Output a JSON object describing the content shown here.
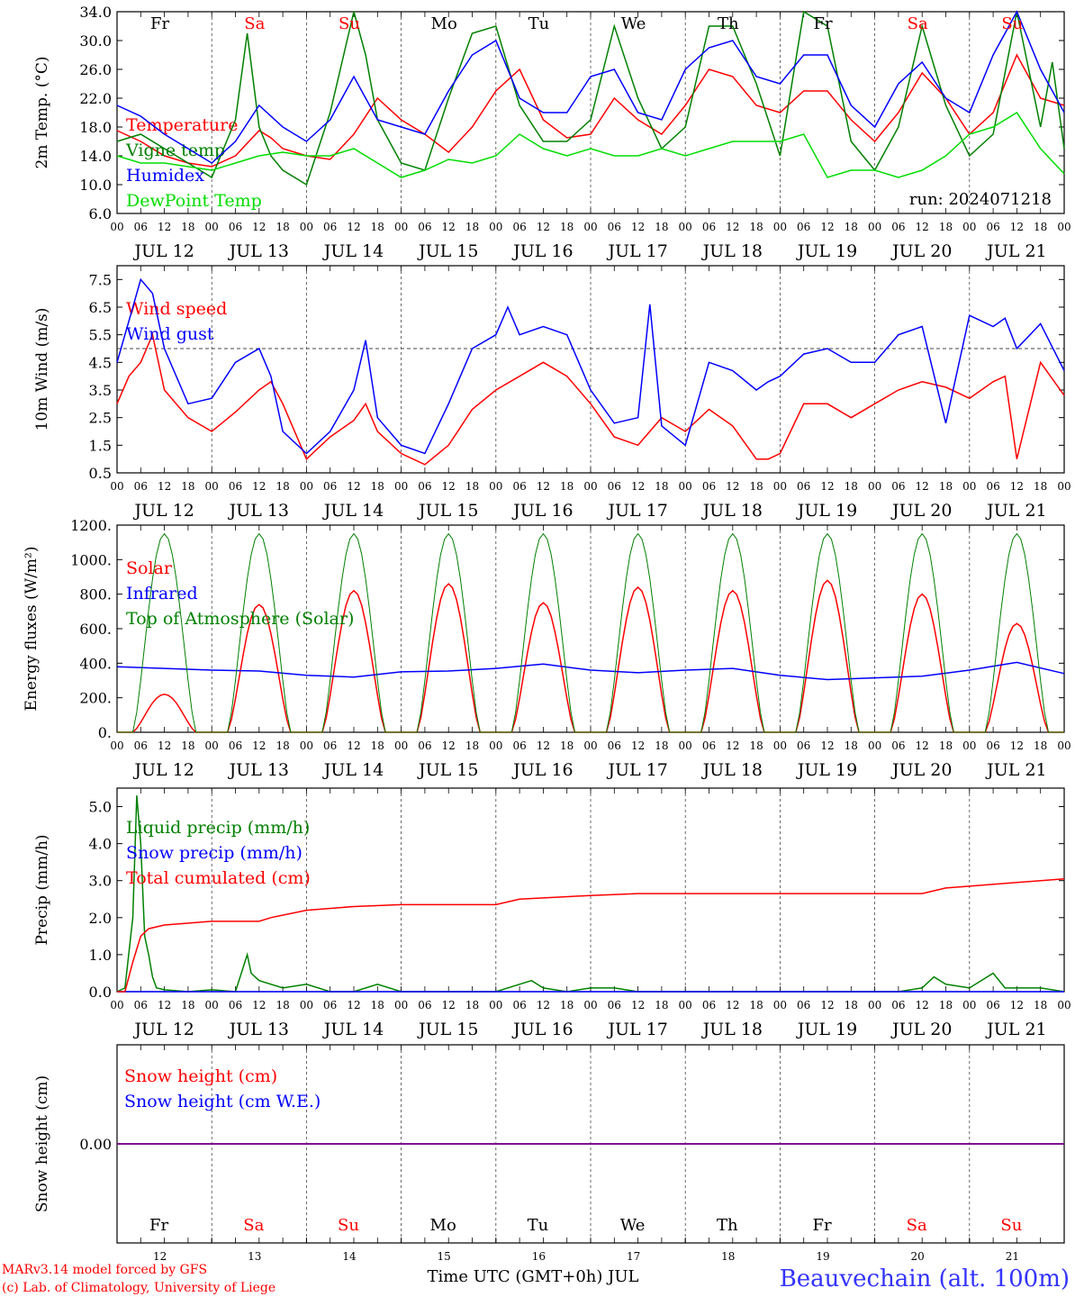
{
  "footer": {
    "credit_line1": "MARv3.14 model forced by GFS",
    "credit_line2": "(c) Lab. of Climatology, University of Liege",
    "axis_title": "Time UTC (GMT+0h) JUL",
    "station": "Beauvechain (alt. 100m)"
  },
  "time_axis": {
    "hour_ticks": [
      "00",
      "06",
      "12",
      "18"
    ],
    "dates": [
      "JUL 12",
      "JUL 13",
      "JUL 14",
      "JUL 15",
      "JUL 16",
      "JUL 17",
      "JUL 18",
      "JUL 19",
      "JUL 20",
      "JUL 21"
    ],
    "day_numbers": [
      "12",
      "13",
      "14",
      "15",
      "16",
      "17",
      "18",
      "19",
      "20",
      "21"
    ],
    "weekdays": [
      "Fr",
      "Sa",
      "Su",
      "Mo",
      "Tu",
      "We",
      "Th",
      "Fr",
      "Sa",
      "Su"
    ],
    "weekend_flags": [
      false,
      true,
      true,
      false,
      false,
      false,
      false,
      false,
      true,
      true
    ]
  },
  "colors": {
    "red": "#ff0000",
    "green": "#008000",
    "blue": "#0000ff",
    "lightgreen": "#00dd00",
    "purple": "#800080",
    "station_blue": "#3333ff"
  },
  "chart_data": [
    {
      "type": "line",
      "ylabel": "2m Temp. (°C)",
      "yticks": [
        "6.0",
        "10.0",
        "14.0",
        "18.0",
        "22.0",
        "26.0",
        "30.0",
        "34.0"
      ],
      "ylim": [
        6,
        34
      ],
      "annotation": "run: 2024071218",
      "x_unit": "hours since JUL 12 00 UTC",
      "series": [
        {
          "name": "Temperature",
          "color": "#ff0000",
          "x": [
            0,
            6,
            12,
            18,
            24,
            30,
            36,
            39,
            42,
            48,
            54,
            60,
            66,
            72,
            78,
            84,
            90,
            96,
            102,
            108,
            114,
            120,
            126,
            132,
            138,
            144,
            150,
            156,
            162,
            168,
            174,
            180,
            186,
            192,
            198,
            204,
            210,
            216,
            222,
            228,
            234,
            240
          ],
          "y": [
            17.5,
            16,
            14,
            13,
            12.5,
            14,
            17.5,
            16.5,
            15,
            14,
            13.5,
            17,
            22,
            19,
            17,
            14.5,
            18,
            23,
            26,
            19,
            16.5,
            17,
            22,
            19,
            17,
            21,
            26,
            25,
            21,
            20,
            23,
            23,
            19,
            16,
            20,
            25.5,
            22,
            17,
            20,
            28,
            22,
            21
          ]
        },
        {
          "name": "Vigne temp",
          "color": "#008000",
          "x": [
            0,
            6,
            12,
            18,
            24,
            30,
            33,
            36,
            39,
            42,
            48,
            54,
            60,
            63,
            66,
            72,
            78,
            84,
            90,
            96,
            102,
            108,
            114,
            120,
            126,
            132,
            138,
            144,
            150,
            156,
            162,
            168,
            174,
            180,
            186,
            192,
            198,
            204,
            210,
            216,
            222,
            228,
            234,
            237,
            240
          ],
          "y": [
            16,
            17,
            15,
            13,
            11,
            19,
            31,
            18,
            14,
            12,
            10,
            20,
            34,
            28,
            19,
            13,
            12,
            22,
            31,
            32,
            21,
            16,
            16,
            19,
            32,
            22,
            15,
            18,
            32,
            32,
            24,
            14,
            34,
            32,
            16,
            12,
            18,
            32,
            21,
            14,
            17,
            34,
            18,
            27,
            15
          ]
        },
        {
          "name": "Humidex",
          "color": "#0000ff",
          "x": [
            0,
            6,
            12,
            18,
            24,
            30,
            36,
            42,
            48,
            54,
            60,
            66,
            72,
            78,
            84,
            90,
            96,
            102,
            108,
            114,
            120,
            126,
            132,
            138,
            144,
            150,
            156,
            162,
            168,
            174,
            180,
            186,
            192,
            198,
            204,
            210,
            216,
            222,
            228,
            234,
            240
          ],
          "y": [
            21,
            19.5,
            17,
            15,
            13,
            16,
            21,
            18,
            16,
            19,
            25,
            19,
            18,
            17,
            23,
            28,
            30,
            22,
            20,
            20,
            25,
            26,
            20,
            19,
            26,
            29,
            30,
            25,
            24,
            28,
            28,
            21,
            18,
            24,
            27,
            22,
            20,
            28,
            34,
            26,
            20
          ]
        },
        {
          "name": "DewPoint Temp",
          "color": "#00dd00",
          "x": [
            0,
            6,
            12,
            18,
            24,
            30,
            36,
            42,
            48,
            54,
            60,
            66,
            72,
            78,
            84,
            90,
            96,
            102,
            108,
            114,
            120,
            126,
            132,
            138,
            144,
            150,
            156,
            162,
            168,
            174,
            180,
            186,
            192,
            198,
            204,
            210,
            216,
            222,
            228,
            234,
            240
          ],
          "y": [
            14,
            13,
            13,
            12.5,
            12,
            13,
            14,
            14.5,
            14,
            14,
            15,
            13,
            11,
            12,
            13.5,
            13,
            14,
            17,
            15,
            14,
            15,
            14,
            14,
            15,
            14,
            15,
            16,
            16,
            16,
            17,
            11,
            12,
            12,
            11,
            12,
            14,
            17,
            18,
            20,
            15,
            11.5
          ]
        }
      ]
    },
    {
      "type": "line",
      "ylabel": "10m Wind (m/s)",
      "yticks": [
        "0.5",
        "1.5",
        "2.5",
        "3.5",
        "4.5",
        "5.5",
        "6.5",
        "7.5"
      ],
      "ylim": [
        0.5,
        8
      ],
      "reference_line": 5,
      "x_unit": "hours since JUL 12 00 UTC",
      "series": [
        {
          "name": "Wind speed",
          "color": "#ff0000",
          "x": [
            0,
            3,
            6,
            9,
            12,
            18,
            24,
            30,
            36,
            39,
            42,
            48,
            54,
            60,
            63,
            66,
            72,
            78,
            84,
            90,
            96,
            102,
            108,
            114,
            120,
            126,
            132,
            138,
            144,
            150,
            156,
            162,
            165,
            168,
            174,
            180,
            186,
            192,
            198,
            204,
            210,
            216,
            222,
            225,
            228,
            234,
            240
          ],
          "y": [
            3,
            4,
            4.5,
            5.5,
            3.5,
            2.5,
            2,
            2.7,
            3.5,
            3.8,
            3,
            1,
            1.8,
            2.4,
            3,
            2,
            1.2,
            0.8,
            1.5,
            2.8,
            3.5,
            4,
            4.5,
            4,
            3,
            1.8,
            1.5,
            2.5,
            2,
            2.8,
            2.2,
            1,
            1,
            1.2,
            3,
            3,
            2.5,
            3,
            3.5,
            3.8,
            3.6,
            3.2,
            3.8,
            4,
            1,
            4.5,
            3.3
          ]
        },
        {
          "name": "Wind gust",
          "color": "#0000ff",
          "x": [
            0,
            3,
            6,
            9,
            12,
            18,
            24,
            30,
            36,
            39,
            42,
            48,
            54,
            60,
            63,
            66,
            72,
            78,
            84,
            90,
            96,
            99,
            102,
            108,
            114,
            120,
            126,
            132,
            135,
            138,
            144,
            150,
            156,
            162,
            165,
            168,
            174,
            180,
            186,
            192,
            198,
            204,
            210,
            216,
            222,
            225,
            228,
            234,
            240
          ],
          "y": [
            4.5,
            6,
            7.5,
            7,
            5,
            3,
            3.2,
            4.5,
            5,
            4,
            2,
            1.2,
            2,
            3.5,
            5.3,
            2.5,
            1.5,
            1.2,
            3,
            5,
            5.5,
            6.5,
            5.5,
            5.8,
            5.5,
            3.5,
            2.3,
            2.5,
            6.6,
            2.2,
            1.5,
            4.5,
            4.2,
            3.5,
            3.8,
            4,
            4.8,
            5,
            4.5,
            4.5,
            5.5,
            5.8,
            2.3,
            6.2,
            5.8,
            6.1,
            5,
            5.9,
            4.2
          ]
        }
      ]
    },
    {
      "type": "line",
      "ylabel": "Energy fluxes (W/m²)",
      "yticks": [
        "0.",
        "200.",
        "400.",
        "600.",
        "800.",
        "1000.",
        "1200."
      ],
      "ylim": [
        0,
        1200
      ],
      "x_unit": "hours since JUL 12 00 UTC",
      "diurnal_peak_hour": 12,
      "diurnal_half_width_hours": 8,
      "series": [
        {
          "name": "Solar",
          "color": "#ff0000",
          "daily_peaks": [
            220,
            740,
            820,
            860,
            750,
            840,
            820,
            880,
            800,
            630
          ]
        },
        {
          "name": "Infrared",
          "color": "#0000ff",
          "x": [
            0,
            12,
            24,
            36,
            48,
            60,
            72,
            84,
            96,
            108,
            120,
            132,
            144,
            156,
            168,
            180,
            192,
            204,
            216,
            228,
            240
          ],
          "y": [
            380,
            370,
            360,
            355,
            330,
            320,
            350,
            355,
            370,
            395,
            360,
            345,
            360,
            370,
            330,
            305,
            315,
            325,
            360,
            405,
            340
          ]
        },
        {
          "name": "Top of Atmosphere (Solar)",
          "color": "#008000",
          "daily_peak": 1150
        }
      ]
    },
    {
      "type": "line",
      "ylabel": "Precip (mm/h)",
      "yticks": [
        "0.0",
        "1.0",
        "2.0",
        "3.0",
        "4.0",
        "5.0"
      ],
      "ylim": [
        0,
        5.5
      ],
      "x_unit": "hours since JUL 12 00 UTC",
      "series": [
        {
          "name": "Liquid precip (mm/h)",
          "color": "#008000",
          "x": [
            0,
            2,
            4,
            5,
            6,
            7,
            8,
            9,
            10,
            12,
            18,
            24,
            30,
            33,
            34,
            36,
            42,
            48,
            54,
            60,
            66,
            72,
            78,
            84,
            90,
            96,
            102,
            105,
            108,
            114,
            120,
            126,
            132,
            138,
            144,
            150,
            156,
            162,
            168,
            174,
            180,
            186,
            192,
            198,
            204,
            207,
            210,
            216,
            222,
            225,
            228,
            234,
            240
          ],
          "y": [
            0,
            0.1,
            2,
            5.3,
            4,
            1.5,
            1,
            0.4,
            0.1,
            0.05,
            0,
            0.05,
            0,
            1,
            0.5,
            0.3,
            0.1,
            0.2,
            0,
            0,
            0.2,
            0,
            0,
            0,
            0,
            0,
            0.2,
            0.3,
            0.1,
            0,
            0.1,
            0.1,
            0,
            0,
            0,
            0,
            0,
            0,
            0,
            0,
            0,
            0,
            0,
            0,
            0.1,
            0.4,
            0.2,
            0.1,
            0.5,
            0.1,
            0.1,
            0.1,
            0
          ]
        },
        {
          "name": "Snow precip (mm/h)",
          "color": "#0000ff",
          "x": [
            0,
            240
          ],
          "y": [
            0,
            0
          ]
        },
        {
          "name": "Total cumulated (cm)",
          "color": "#ff0000",
          "x": [
            0,
            2,
            4,
            6,
            8,
            12,
            24,
            36,
            39,
            48,
            60,
            72,
            96,
            102,
            120,
            132,
            156,
            192,
            204,
            210,
            216,
            228,
            240
          ],
          "y": [
            0,
            0,
            0.8,
            1.5,
            1.7,
            1.8,
            1.9,
            1.9,
            2.0,
            2.2,
            2.3,
            2.35,
            2.35,
            2.5,
            2.6,
            2.65,
            2.65,
            2.65,
            2.65,
            2.8,
            2.85,
            2.95,
            3.05
          ]
        }
      ]
    },
    {
      "type": "line",
      "ylabel": "Snow height (cm)",
      "yticks": [
        "0.00"
      ],
      "ylim": [
        -1,
        1
      ],
      "x_unit": "hours since JUL 12 00 UTC",
      "series": [
        {
          "name": "Snow height (cm)",
          "color": "#ff0000",
          "x": [
            0,
            240
          ],
          "y": [
            0,
            0
          ]
        },
        {
          "name": "Snow height (cm W.E.)",
          "color": "#0000ff",
          "x": [
            0,
            240
          ],
          "y": [
            0,
            0
          ]
        }
      ]
    }
  ]
}
